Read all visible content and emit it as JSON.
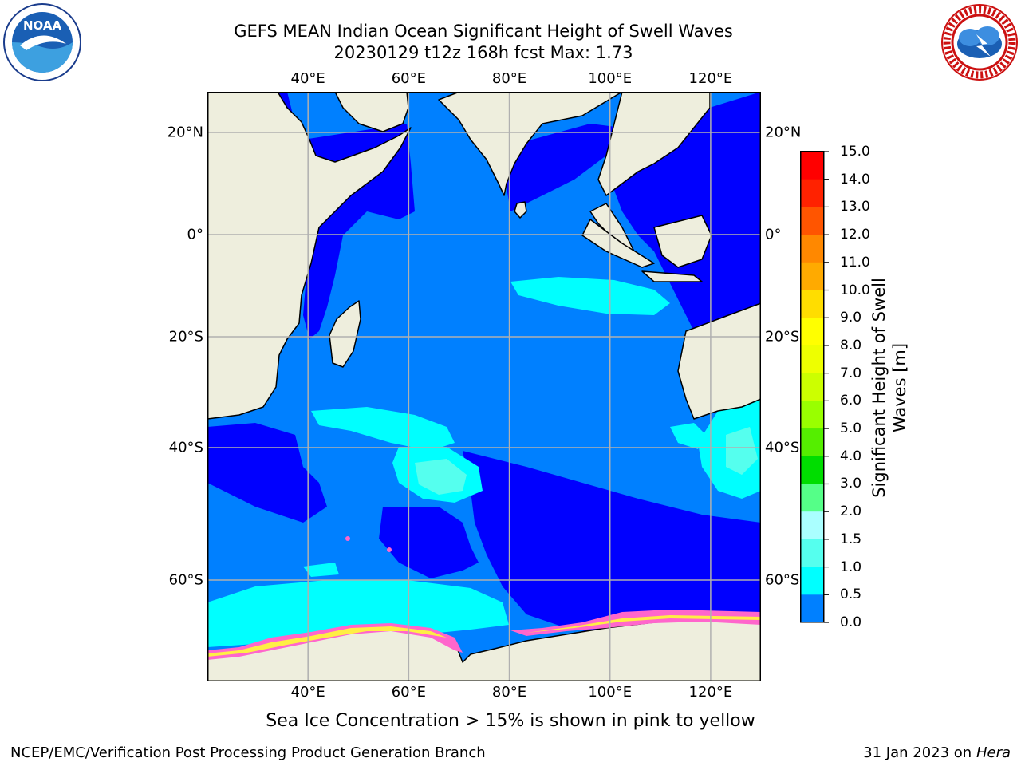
{
  "title": {
    "line1": "GEFS MEAN Indian Ocean Significant Height of Swell Waves",
    "line2": "20230129 t12z 168h fcst   Max: 1.73"
  },
  "logos": {
    "left": {
      "name": "NOAA",
      "text": "NOAA",
      "ring_text": "NATIONAL OCEANIC AND ATMOSPHERIC ADMINISTRATION · U.S. DEPARTMENT OF COMMERCE"
    },
    "right": {
      "name": "National Weather Service",
      "ring_text": "NATIONAL WEATHER SERVICE"
    }
  },
  "map": {
    "lon_labels": [
      "40°E",
      "60°E",
      "80°E",
      "100°E",
      "120°E"
    ],
    "lon_values": [
      40,
      60,
      80,
      100,
      120
    ],
    "lat_labels": [
      "20°N",
      "0°",
      "20°S",
      "40°S",
      "60°S"
    ],
    "lat_values": [
      20,
      0,
      -20,
      -40,
      -60
    ],
    "lon_range": [
      20,
      130
    ],
    "colors": {
      "land": "#eeeedd",
      "coast": "#000000",
      "grid": "#b0b0b0",
      "bin_0_0_5": "#0000ff",
      "bin_0_5_1_0": "#0080ff",
      "bin_1_0_1_5": "#00ffff",
      "bin_1_5_2_0": "#44ffee",
      "bin_2_0_3_0": "#99ffff",
      "ice_pink": "#ff66cc",
      "ice_yellow": "#ffee44"
    }
  },
  "colorbar": {
    "title_line1": "Significant Height of Swell",
    "title_line2": "Waves [m]",
    "tick_labels": [
      "15.0",
      "14.0",
      "13.0",
      "12.0",
      "11.0",
      "10.0",
      "9.0",
      "8.0",
      "7.0",
      "6.0",
      "5.0",
      "4.0",
      "3.0",
      "2.0",
      "1.5",
      "1.0",
      "0.5",
      "0.0"
    ],
    "bin_colors": [
      "#ff0000",
      "#ff2200",
      "#ff5500",
      "#ff8800",
      "#ffaa00",
      "#ffdd00",
      "#ffff00",
      "#eeff00",
      "#ccff00",
      "#99ff00",
      "#55ee00",
      "#00dd00",
      "#55ff88",
      "#aaffff",
      "#55ffee",
      "#00ffff",
      "#0080ff",
      "#0000ff"
    ]
  },
  "note": "Sea Ice Concentration > 15% is shown in pink to yellow",
  "footer": {
    "left": "NCEP/EMC/Verification Post Processing Product Generation Branch",
    "right_prefix": "31 Jan 2023 on ",
    "right_italic": "Hera"
  }
}
